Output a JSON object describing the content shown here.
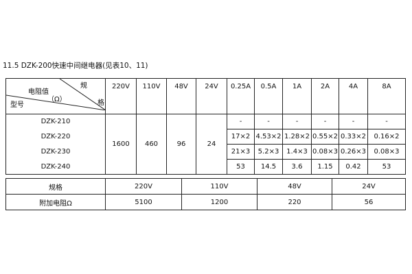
{
  "title": "11.5 DZK-200快速中间继电器(见表10、11)",
  "table1": {
    "corner": {
      "spec": "规",
      "spec2": "格",
      "resistance": "电阻值",
      "unit": "（Ω）",
      "model": "型号"
    },
    "columns": [
      "220V",
      "110V",
      "48V",
      "24V",
      "0.25A",
      "0.5A",
      "1A",
      "2A",
      "4A",
      "8A"
    ],
    "models": [
      "DZK-210",
      "DZK-220",
      "DZK-230",
      "DZK-240"
    ],
    "voltage_values": [
      "1600",
      "460",
      "96",
      "24"
    ],
    "current_rows": [
      [
        "-",
        "-",
        "-",
        "-",
        "-",
        "-"
      ],
      [
        "17×2",
        "4.53×2",
        "1.28×2",
        "0.55×2",
        "0.33×2",
        "0.16×2"
      ],
      [
        "21×3",
        "5.2×3",
        "1.4×3",
        "0.08×3",
        "0.26×3",
        "0.08×3"
      ],
      [
        "53",
        "14.5",
        "3.6",
        "1.15",
        "0.42",
        "53"
      ]
    ]
  },
  "table2": {
    "row1_label": "规格",
    "row2_label": "附加电阻Ω",
    "specs": [
      "220V",
      "110V",
      "48V",
      "24V"
    ],
    "values": [
      "5100",
      "1200",
      "220",
      "56"
    ]
  }
}
